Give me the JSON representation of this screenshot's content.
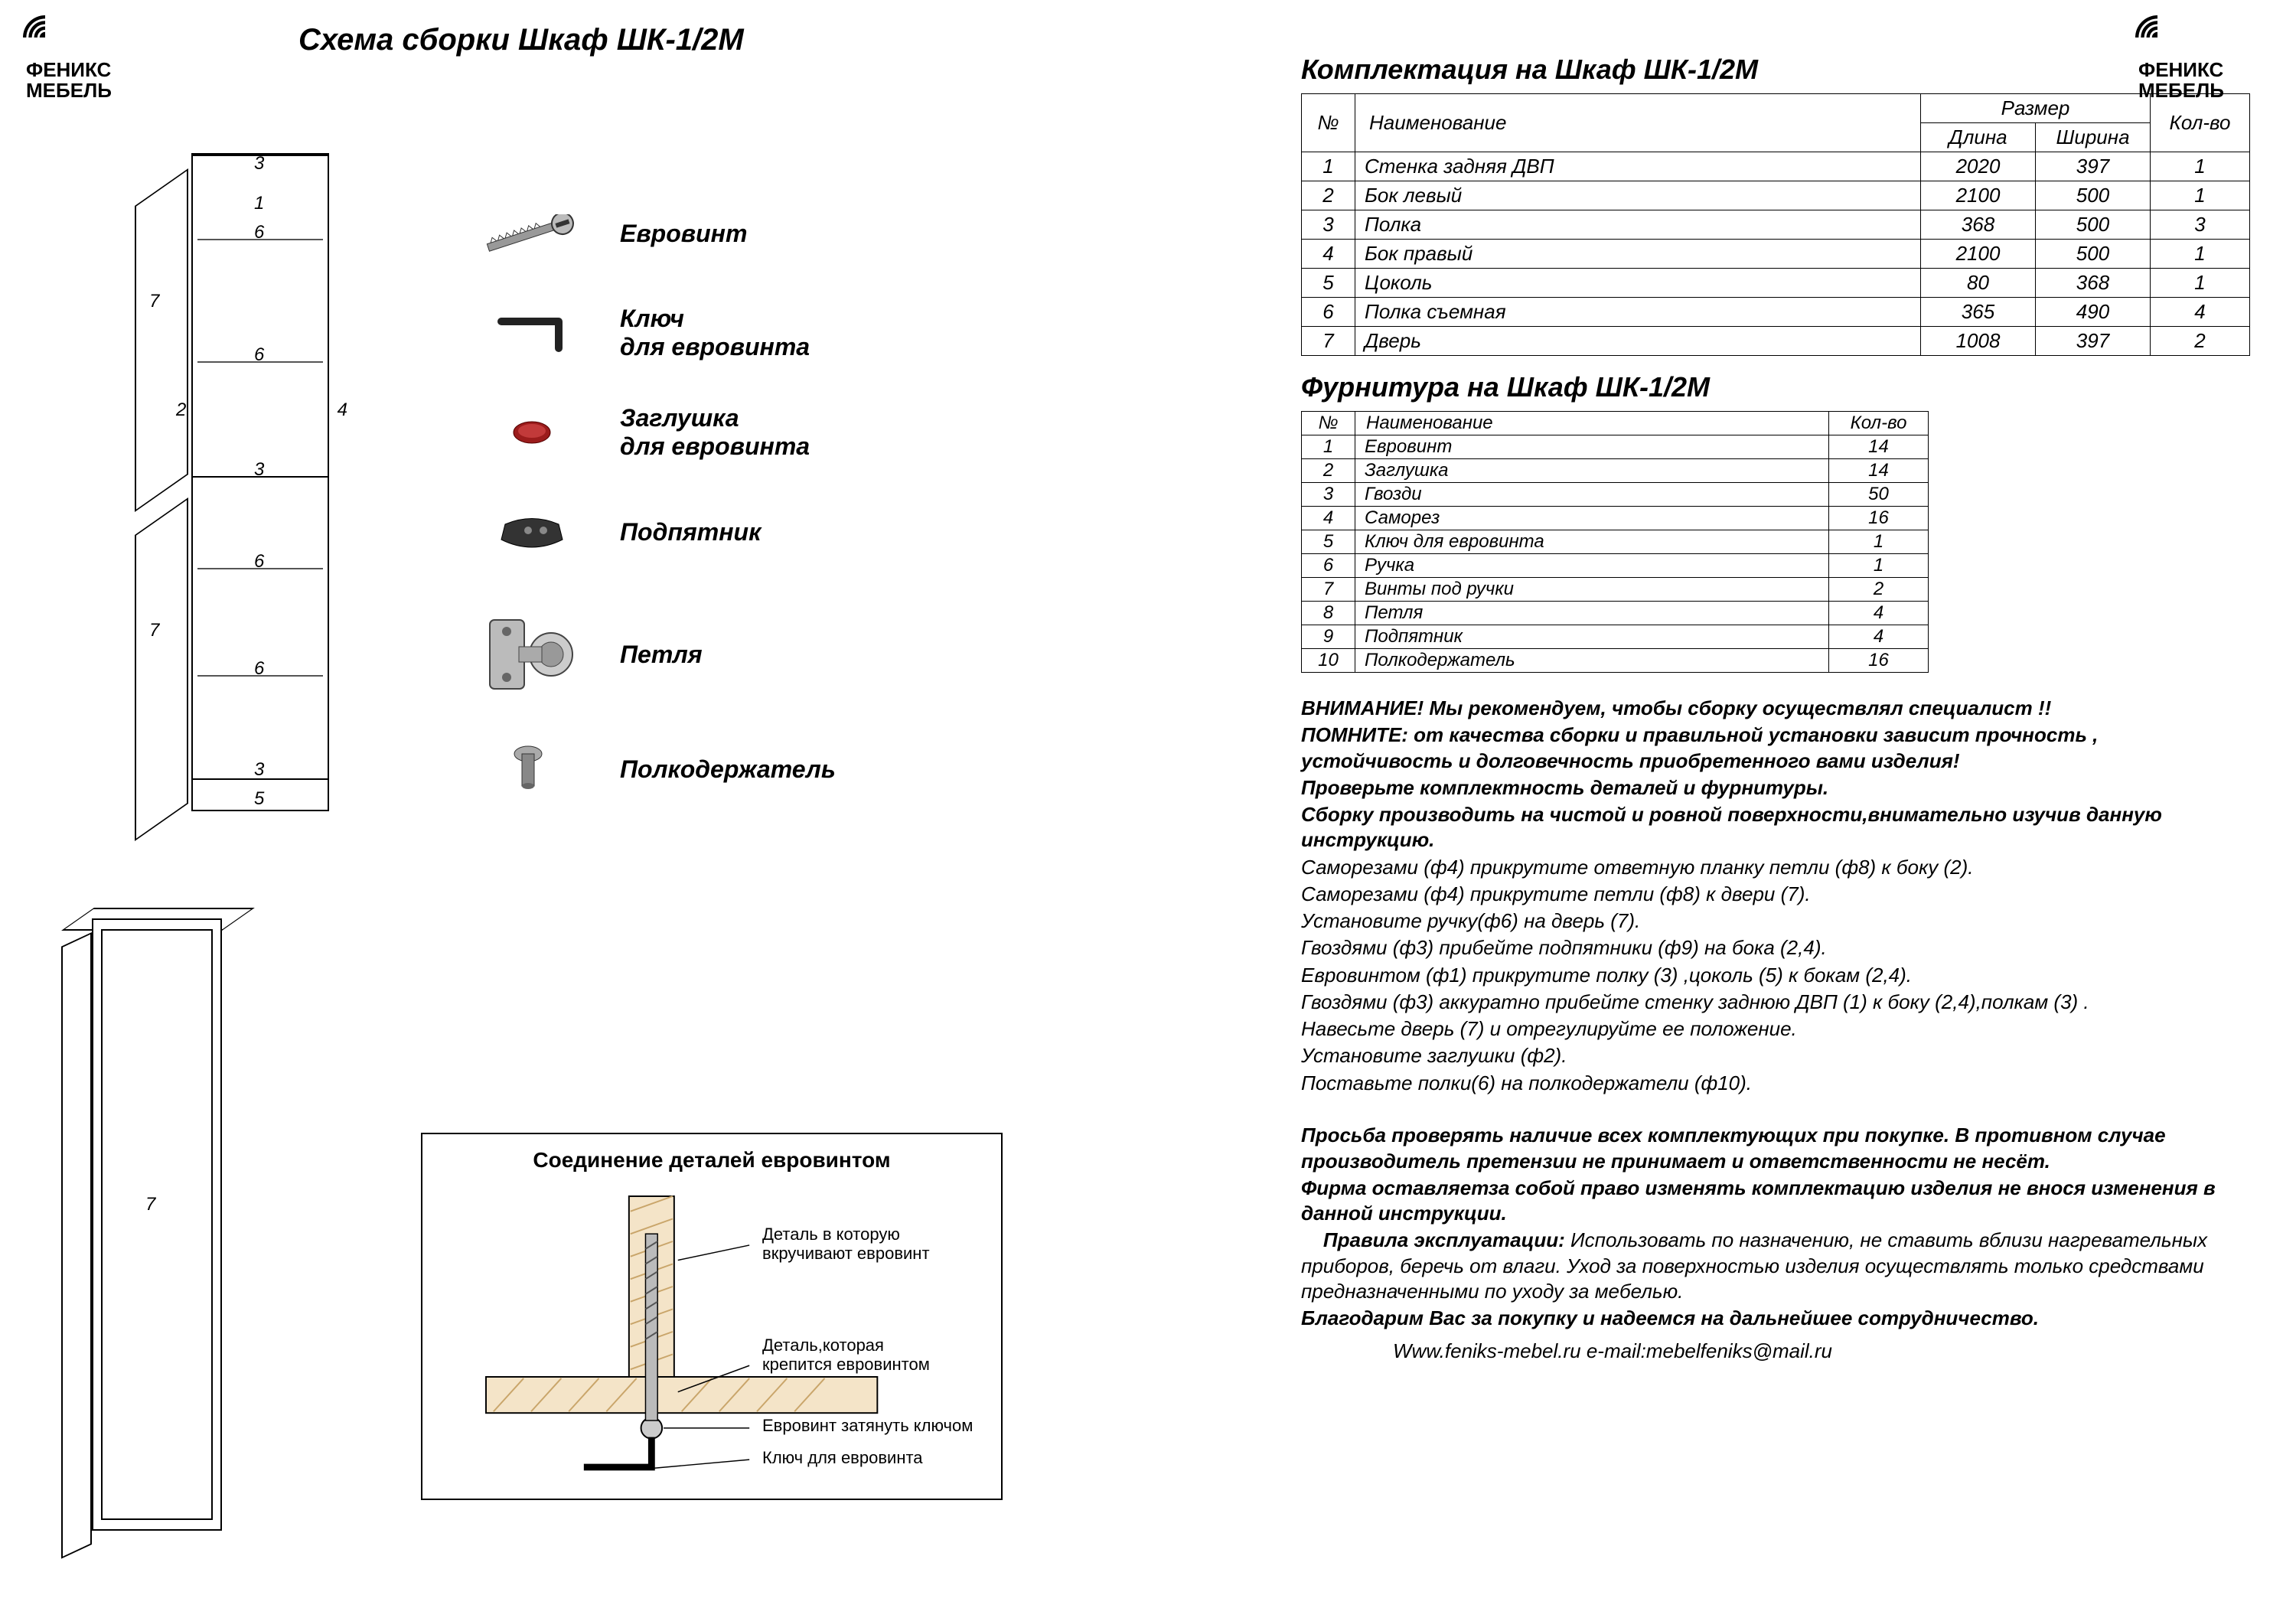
{
  "brand": "ФЕНИКС МЕБЕЛЬ",
  "assembly_title": "Схема сборки Шкаф ШК-1/2М",
  "parts_title": "Комплектация на Шкаф ШК-1/2М",
  "hardware_title": "Фурнитура на  Шкаф ШК-1/2М",
  "detail_title": "Соединение деталей евровинтом",
  "diagram_part_labels": {
    "p1": "1",
    "p2": "2",
    "p3": "3",
    "p4": "4",
    "p5": "5",
    "p6": "6",
    "p7": "7"
  },
  "hw_legend": [
    {
      "label": "Евровинт"
    },
    {
      "label": "Ключ\nдля евровинта"
    },
    {
      "label": "Заглушка\nдля евровинта"
    },
    {
      "label": "Подпятник"
    },
    {
      "label": "Петля"
    },
    {
      "label": "Полкодержатель"
    }
  ],
  "parts_table": {
    "headers": {
      "no": "№",
      "name": "Наименование",
      "size": "Размер",
      "len": "Длина",
      "wid": "Ширина",
      "qty": "Кол-во"
    },
    "rows": [
      {
        "no": "1",
        "name": "Стенка задняя ДВП",
        "len": "2020",
        "wid": "397",
        "qty": "1"
      },
      {
        "no": "2",
        "name": "Бок левый",
        "len": "2100",
        "wid": "500",
        "qty": "1"
      },
      {
        "no": "3",
        "name": "Полка",
        "len": "368",
        "wid": "500",
        "qty": "3"
      },
      {
        "no": "4",
        "name": "Бок правый",
        "len": "2100",
        "wid": "500",
        "qty": "1"
      },
      {
        "no": "5",
        "name": "Цоколь",
        "len": "80",
        "wid": "368",
        "qty": "1"
      },
      {
        "no": "6",
        "name": "Полка съемная",
        "len": "365",
        "wid": "490",
        "qty": "4"
      },
      {
        "no": "7",
        "name": "Дверь",
        "len": "1008",
        "wid": "397",
        "qty": "2"
      }
    ]
  },
  "hw_table": {
    "headers": {
      "no": "№",
      "name": "Наименование",
      "qty": "Кол-во"
    },
    "rows": [
      {
        "no": "1",
        "name": "Евровинт",
        "qty": "14"
      },
      {
        "no": "2",
        "name": "Заглушка",
        "qty": "14"
      },
      {
        "no": "3",
        "name": "Гвозди",
        "qty": "50"
      },
      {
        "no": "4",
        "name": "Саморез",
        "qty": "16"
      },
      {
        "no": "5",
        "name": "Ключ для евровинта",
        "qty": "1"
      },
      {
        "no": "6",
        "name": "Ручка",
        "qty": "1"
      },
      {
        "no": "7",
        "name": "Винты под ручки",
        "qty": "2"
      },
      {
        "no": "8",
        "name": "Петля",
        "qty": "4"
      },
      {
        "no": "9",
        "name": "Подпятник",
        "qty": "4"
      },
      {
        "no": "10",
        "name": "Полкодержатель",
        "qty": "16"
      }
    ]
  },
  "detail_labels": {
    "l1": "Деталь в которую\nвкручивают евровинт",
    "l2": "Деталь,которая\nкрепится евровинтом",
    "l3": "Евровинт затянуть ключом",
    "l4": "Ключ для евровинта"
  },
  "instructions": {
    "warn1": "ВНИМАНИЕ! Мы рекомендуем, чтобы сборку осуществлял специалист !!",
    "warn2": "ПОМНИТЕ: от качества сборки и правильной установки зависит прочность , устойчивость и долговечность приобретенного вами изделия!",
    "warn3": "Проверьте комплектность деталей и фурнитуры.",
    "warn4": "Сборку производить на чистой и ровной поверхности,внимательно изучив данную инструкцию.",
    "s1": "Саморезами (ф4) прикрутите ответную планку петли (ф8) к боку (2).",
    "s2": "Саморезами (ф4) прикрутите  петли (ф8) к двери (7).",
    "s3": "Установите ручку(ф6) на дверь (7).",
    "s4": "Гвоздями (ф3) прибейте подпятники (ф9) на бока (2,4).",
    "s5": "Евровинтом (ф1) прикрутите полку (3) ,цоколь (5) к бокам (2,4).",
    "s6": "Гвоздями (ф3) аккуратно прибейте стенку заднюю ДВП (1) к боку (2,4),полкам  (3) .",
    "s7": "Навесьте дверь (7) и отрегулируйте ее положение.",
    "s8": "Установите заглушки (ф2).",
    "s9": "Поставьте полки(6) на полкодержатели (ф10).",
    "note1": "Просьба проверять наличие всех комплектующих при покупке. В противном случае производитель претензии не принимает и ответственности не несёт.",
    "note2": "Фирма оставляетза собой право изменять комплектацию изделия не внося  изменения в данной инструкции.",
    "rules_label": "Правила эксплуатации:",
    "rules": " Использовать по назначению, не ставить вблизи нагревательных приборов, беречь от влаги. Уход за поверхностью изделия осуществлять только средствами  предназначенными по уходу за мебелью.",
    "thanks": "Благодарим Вас за покупку и надеемся на дальнейшее сотрудничество.",
    "contact": "Www.feniks-mebel.ru   e-mail:mebelfeniks@mail.ru"
  },
  "colors": {
    "text": "#000000",
    "bg": "#ffffff",
    "accent_red": "#9b1c1c",
    "metal": "#8a8a8a",
    "metal_dark": "#555555",
    "wood_hatched": "#d8b088"
  }
}
